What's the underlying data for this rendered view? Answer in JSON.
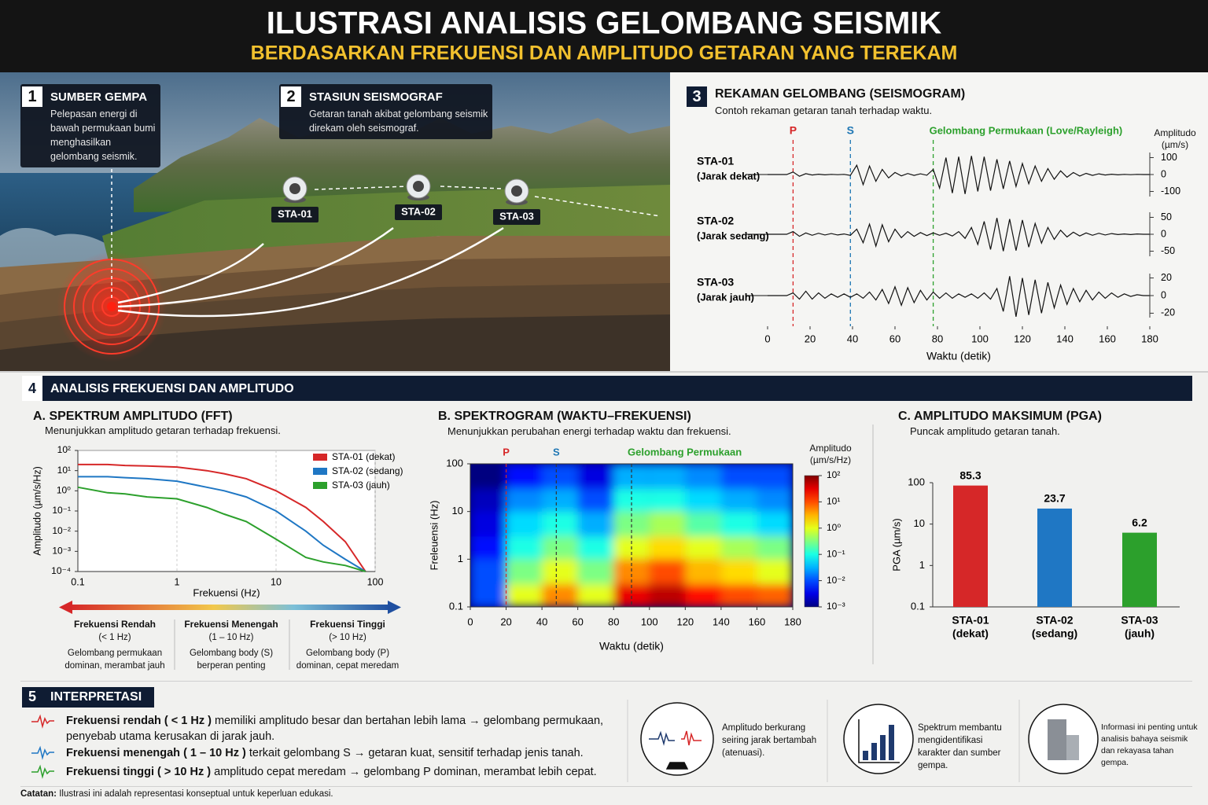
{
  "header": {
    "title": "ILUSTRASI ANALISIS GELOMBANG SEISMIK",
    "subtitle": "BERDASARKAN FREKUENSI DAN AMPLITUDO GETARAN YANG TEREKAM"
  },
  "scene": {
    "cards": [
      {
        "number": "1",
        "title": "SUMBER GEMPA",
        "text": "Pelepasan energi di bawah permukaan bumi menghasilkan gelombang seismik."
      },
      {
        "number": "2",
        "title": "STASIUN SEISMOGRAF",
        "text": "Getaran tanah akibat gelombang seismik direkam oleh seismograf."
      }
    ],
    "stations": [
      "STA-01",
      "STA-02",
      "STA-03"
    ]
  },
  "analysis": {
    "number": "4",
    "title": "ANALISIS FREKUENSI DAN AMPLITUDO"
  },
  "chart_data": [
    {
      "type": "line",
      "number": "3",
      "title": "REKAMAN GELOMBANG (SEISMOGRAM)",
      "subtitle": "Contoh rekaman getaran tanah terhadap waktu.",
      "y_label": "Amplitudo (µm/s)",
      "xlabel": "Waktu (detik)",
      "xlim": [
        0,
        180
      ],
      "xticks": [
        0,
        20,
        40,
        60,
        80,
        100,
        120,
        140,
        160,
        180
      ],
      "phases": [
        {
          "label": "P",
          "x": 12,
          "color": "#d62728"
        },
        {
          "label": "S",
          "x": 39,
          "color": "#1f77b4"
        },
        {
          "label": "Gelombang Permukaan (Love/Rayleigh)",
          "x": 78,
          "color": "#2ca02c"
        }
      ],
      "x": [
        0,
        3,
        6,
        9,
        12,
        15,
        18,
        21,
        24,
        27,
        30,
        33,
        36,
        39,
        42,
        45,
        48,
        51,
        54,
        57,
        60,
        63,
        66,
        69,
        72,
        75,
        78,
        81,
        84,
        87,
        90,
        93,
        96,
        99,
        102,
        105,
        108,
        111,
        114,
        117,
        120,
        123,
        126,
        129,
        132,
        135,
        138,
        141,
        144,
        147,
        150,
        153,
        156,
        159,
        162,
        165,
        168,
        171,
        174,
        177,
        180
      ],
      "series": [
        {
          "name": "STA-01",
          "note": "(Jarak dekat)",
          "color": "#111111",
          "ylim": [
            -130,
            130
          ],
          "yticks": [
            100,
            0,
            -100
          ],
          "values": [
            0,
            0,
            0,
            0,
            15,
            -10,
            5,
            -3,
            2,
            -2,
            1,
            -1,
            1,
            -5,
            55,
            -60,
            50,
            -40,
            30,
            -20,
            12,
            -8,
            6,
            -5,
            4,
            -4,
            30,
            -80,
            100,
            -110,
            105,
            -115,
            110,
            -100,
            105,
            -95,
            90,
            -85,
            80,
            -70,
            65,
            -55,
            50,
            -40,
            35,
            -28,
            22,
            -16,
            12,
            -9,
            7,
            -5,
            4,
            -3,
            2,
            -2,
            1,
            -1,
            1,
            0,
            0
          ]
        },
        {
          "name": "STA-02",
          "note": "(Jarak sedang)",
          "color": "#111111",
          "ylim": [
            -65,
            65
          ],
          "yticks": [
            50,
            0,
            -50
          ],
          "values": [
            0,
            0,
            0,
            0,
            8,
            -6,
            4,
            -3,
            3,
            -2,
            2,
            -2,
            1,
            -3,
            15,
            -25,
            30,
            -35,
            28,
            -22,
            15,
            -10,
            8,
            -6,
            5,
            -4,
            4,
            -3,
            3,
            -5,
            8,
            -12,
            20,
            -30,
            38,
            -45,
            48,
            -50,
            45,
            -48,
            42,
            -38,
            32,
            -26,
            20,
            -15,
            12,
            -8,
            6,
            -5,
            4,
            -3,
            3,
            -2,
            2,
            -1,
            1,
            -1,
            1,
            0,
            0
          ]
        },
        {
          "name": "STA-03",
          "note": "(Jarak jauh)",
          "color": "#111111",
          "ylim": [
            -25,
            25
          ],
          "yticks": [
            20,
            0,
            -20
          ],
          "values": [
            0,
            0,
            0,
            0,
            3,
            -4,
            5,
            -4,
            3,
            -3,
            2,
            -2,
            2,
            -2,
            2,
            -3,
            4,
            -5,
            7,
            -9,
            10,
            -11,
            9,
            -8,
            6,
            -5,
            4,
            -3,
            3,
            -3,
            2,
            -2,
            2,
            -3,
            3,
            -4,
            8,
            -18,
            22,
            -24,
            20,
            -22,
            18,
            -20,
            15,
            -14,
            12,
            -10,
            8,
            -7,
            6,
            -5,
            4,
            -3,
            3,
            -2,
            2,
            -1,
            1,
            0,
            0
          ]
        }
      ]
    },
    {
      "type": "line",
      "title": "A. SPEKTRUM AMPLITUDO (FFT)",
      "subtitle": "Menunjukkan amplitudo getaran terhadap frekuensi.",
      "xlabel": "Frekuensi (Hz)",
      "ylabel": "Amplitudo (µm/s/Hz)",
      "log_x": true,
      "log_y": true,
      "xlim": [
        0.1,
        100
      ],
      "xticks": [
        0.1,
        1,
        10,
        100
      ],
      "ylim": [
        0.0001,
        100
      ],
      "yticks": [
        {
          "value": 100,
          "label": "10²"
        },
        {
          "value": 10,
          "label": "10¹"
        },
        {
          "value": 1,
          "label": "10⁰"
        },
        {
          "value": 0.1,
          "label": "10⁻¹"
        },
        {
          "value": 0.01,
          "label": "10⁻²"
        },
        {
          "value": 0.001,
          "label": "10⁻³"
        },
        {
          "value": 0.0001,
          "label": "10⁻⁴"
        }
      ],
      "x": [
        0.1,
        0.2,
        0.3,
        0.5,
        1,
        2,
        3,
        5,
        10,
        20,
        30,
        50,
        80
      ],
      "series": [
        {
          "name": "STA-01 (dekat)",
          "color": "#d62728",
          "values": [
            20,
            20,
            18,
            17,
            15,
            10,
            7,
            4,
            1,
            0.15,
            0.03,
            0.003,
            0.0001
          ]
        },
        {
          "name": "STA-02 (sedang)",
          "color": "#1f77c4",
          "values": [
            5,
            5,
            4.5,
            4,
            3,
            1.5,
            1,
            0.5,
            0.1,
            0.01,
            0.002,
            0.0004,
            0.0001
          ]
        },
        {
          "name": "STA-03 (jauh)",
          "color": "#2ca02c",
          "values": [
            1.5,
            0.8,
            0.7,
            0.5,
            0.4,
            0.15,
            0.07,
            0.03,
            0.004,
            0.0005,
            0.0003,
            0.0002,
            0.0001
          ]
        }
      ],
      "bands": [
        {
          "title": "Frekuensi Rendah",
          "range": "(< 1 Hz)",
          "text": "Gelombang permukaan dominan, merambat jauh"
        },
        {
          "title": "Frekuensi Menengah",
          "range": "(1 – 10 Hz)",
          "text": "Gelombang body (S) berperan penting"
        },
        {
          "title": "Frekuensi Tinggi",
          "range": "(> 10 Hz)",
          "text": "Gelombang body (P) dominan, cepat meredam"
        }
      ]
    },
    {
      "type": "heatmap",
      "title": "B. SPEKTROGRAM (WAKTU–FREKUENSI)",
      "subtitle": "Menunjukkan perubahan energi terhadap waktu dan frekuensi.",
      "xlabel": "Waktu (detik)",
      "ylabel": "Freleuensi (Hz)",
      "log_y": true,
      "xlim": [
        0,
        180
      ],
      "xticks": [
        0,
        20,
        40,
        60,
        80,
        100,
        120,
        140,
        160,
        180
      ],
      "ylim": [
        0.1,
        100
      ],
      "yticks": [
        0.1,
        1,
        10,
        100
      ],
      "phases": [
        {
          "label": "P",
          "x": 20,
          "color": "#d62728"
        },
        {
          "label": "S",
          "x": 48,
          "color": "#1f77b4"
        },
        {
          "label": "Gelombang Permukaan",
          "x": 90,
          "color": "#2ca02c"
        }
      ],
      "x_edges": [
        0,
        20,
        40,
        60,
        80,
        100,
        120,
        140,
        160,
        180
      ],
      "y_edges": [
        0.1,
        0.3,
        1,
        3,
        10,
        30,
        100
      ],
      "z": [
        [
          0.01,
          1,
          5,
          1,
          30,
          50,
          20,
          10,
          8
        ],
        [
          0.01,
          0.3,
          1,
          0.3,
          5,
          10,
          3,
          2,
          1
        ],
        [
          0.005,
          0.1,
          0.3,
          0.1,
          1,
          2,
          1,
          0.5,
          0.3
        ],
        [
          0.003,
          0.05,
          0.1,
          0.03,
          0.3,
          0.5,
          0.2,
          0.1,
          0.05
        ],
        [
          0.002,
          0.02,
          0.03,
          0.01,
          0.1,
          0.1,
          0.05,
          0.03,
          0.02
        ],
        [
          0.001,
          0.005,
          0.01,
          0.003,
          0.03,
          0.03,
          0.02,
          0.01,
          0.01
        ]
      ],
      "colorbar_label": "Amplitudo (µm/s/Hz)",
      "zlim": [
        0.001,
        100
      ],
      "zticks": [
        {
          "value": 100,
          "label": "10²"
        },
        {
          "value": 10,
          "label": "10¹"
        },
        {
          "value": 1,
          "label": "10⁰"
        },
        {
          "value": 0.1,
          "label": "10⁻¹"
        },
        {
          "value": 0.01,
          "label": "10⁻²"
        },
        {
          "value": 0.001,
          "label": "10⁻³"
        }
      ]
    },
    {
      "type": "bar",
      "title": "C. AMPLITUDO MAKSIMUM (PGA)",
      "subtitle": "Puncak amplitudo getaran tanah.",
      "ylabel": "PGA (µm/s)",
      "log_y": true,
      "ylim": [
        0.1,
        100
      ],
      "yticks": [
        0.1,
        1,
        10,
        100
      ],
      "categories": [
        "STA-01",
        "STA-02",
        "STA-03"
      ],
      "category_notes": [
        "(dekat)",
        "(sedang)",
        "(jauh)"
      ],
      "values": [
        85.3,
        23.7,
        6.2
      ],
      "colors": [
        "#d62728",
        "#1f77c4",
        "#2ca02c"
      ]
    }
  ],
  "interpretation": {
    "number": "5",
    "title": "INTERPRETASI",
    "items": [
      {
        "bold": "Frekuensi rendah ( < 1 Hz )",
        "text": " memiliki amplitudo besar dan bertahan lebih lama → gelombang permukaan, penyebab utama kerusakan di jarak jauh.",
        "color": "#d62728"
      },
      {
        "bold": "Frekuensi menengah ( 1 – 10 Hz )",
        "text": " terkait gelombang S → getaran kuat, sensitif terhadap jenis tanah.",
        "color": "#1f77c4"
      },
      {
        "bold": "Frekuensi tinggi ( > 10 Hz )",
        "text": " amplitudo cepat meredam → gelombang P dominan, merambat lebih cepat.",
        "color": "#2ca02c"
      }
    ],
    "cards": [
      "Amplitudo berkurang seiring jarak bertambah (atenuasi).",
      "Spektrum membantu mengidentifikasi karakter dan sumber gempa.",
      "Informasi ini penting untuk analisis bahaya seismik dan rekayasa tahan gempa."
    ]
  },
  "note": {
    "bold": "Catatan:",
    "text": " Ilustrasi ini adalah representasi konseptual untuk keperluan edukasi."
  }
}
